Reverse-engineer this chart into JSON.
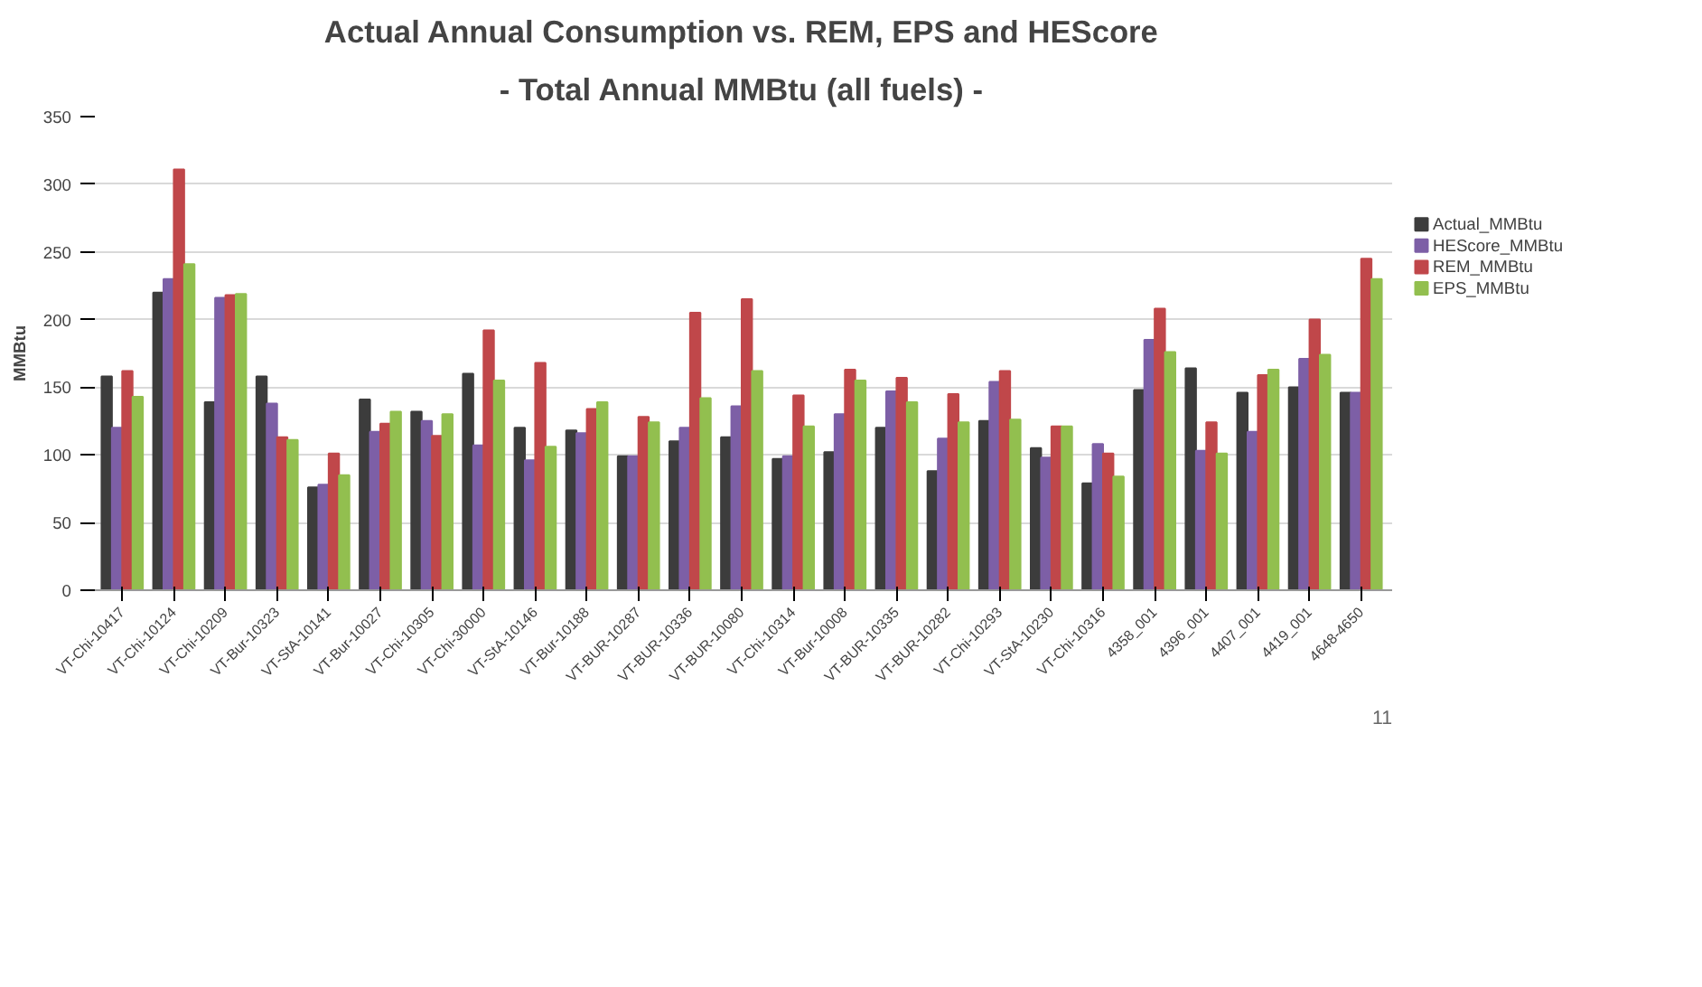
{
  "chart_data": {
    "type": "bar",
    "title": "Actual Annual Consumption vs. REM, EPS and HEScore",
    "subtitle": "- Total Annual MMBtu (all fuels) -",
    "ylabel": "MMBtu",
    "categories": [
      "VT-Chi-10417",
      "VT-Chi-10124",
      "VT-Chi-10209",
      "VT-Bur-10323",
      "VT-StA-10141",
      "VT-Bur-10027",
      "VT-Chi-10305",
      "VT-Chi-30000",
      "VT-StA-10146",
      "VT-Bur-10188",
      "VT-BUR-10287",
      "VT-BUR-10336",
      "VT-BUR-10080",
      "VT-Chi-10314",
      "VT-Bur-10008",
      "VT-BUR-10335",
      "VT-BUR-10282",
      "VT-Chi-10293",
      "VT-StA-10230",
      "VT-Chi-10316",
      "4358_001",
      "4396_001",
      "4407_001",
      "4419_001",
      "4648-4650"
    ],
    "series": [
      {
        "name": "Actual_MMBtu",
        "color": "#3c3c3c",
        "values": [
          158,
          220,
          139,
          158,
          76,
          141,
          132,
          160,
          120,
          118,
          99,
          110,
          113,
          97,
          102,
          120,
          88,
          125,
          105,
          79,
          148,
          164,
          146,
          150,
          146
        ]
      },
      {
        "name": "HEScore_MMBtu",
        "color": "#7d5fa6",
        "values": [
          120,
          230,
          216,
          138,
          78,
          117,
          125,
          107,
          96,
          116,
          99,
          120,
          136,
          99,
          130,
          147,
          112,
          154,
          98,
          108,
          185,
          103,
          117,
          171,
          146
        ]
      },
      {
        "name": "REM_MMBtu",
        "color": "#c0474a",
        "values": [
          162,
          311,
          218,
          113,
          101,
          123,
          114,
          192,
          168,
          134,
          128,
          205,
          215,
          144,
          163,
          157,
          145,
          162,
          121,
          101,
          208,
          124,
          159,
          200,
          245
        ]
      },
      {
        "name": "EPS_MMBtu",
        "color": "#92bf4f",
        "values": [
          143,
          241,
          219,
          111,
          85,
          132,
          130,
          155,
          106,
          139,
          124,
          142,
          162,
          121,
          155,
          139,
          124,
          126,
          121,
          84,
          176,
          101,
          163,
          174,
          230
        ]
      }
    ],
    "ylim": [
      0,
      350
    ],
    "yticks": [
      0,
      50,
      100,
      150,
      200,
      250,
      300,
      350
    ],
    "grid": "y",
    "legend": "right",
    "annotations": [
      "11"
    ]
  }
}
